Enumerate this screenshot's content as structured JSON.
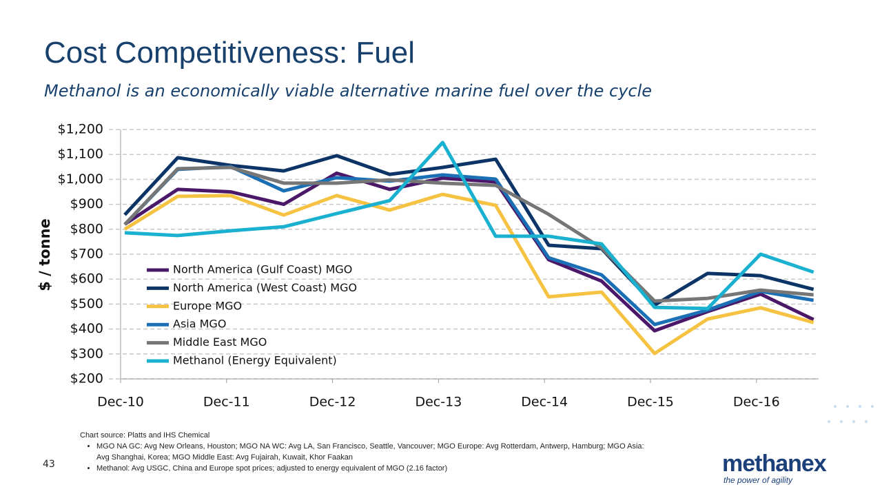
{
  "title": "Cost Competitiveness: Fuel",
  "subtitle": "Methanol is an economically viable alternative marine fuel over the cycle",
  "chart_data": {
    "type": "line",
    "ylabel": "$ / tonne",
    "categories": [
      "Dec-10",
      null,
      "Dec-11",
      null,
      "Dec-12",
      null,
      "Dec-13",
      null,
      "Dec-14",
      null,
      "Dec-15",
      null,
      "Dec-16",
      null
    ],
    "series": [
      {
        "name": "North America (Gulf Coast) MGO",
        "color": "#4b1869",
        "values": [
          820,
          960,
          950,
          900,
          1025,
          960,
          1005,
          990,
          678,
          592,
          393,
          470,
          540,
          438
        ]
      },
      {
        "name": "North America (West Coast) MGO",
        "color": "#0d3466",
        "values": [
          858,
          1087,
          1056,
          1034,
          1095,
          1020,
          1048,
          1081,
          736,
          722,
          496,
          623,
          614,
          559
        ]
      },
      {
        "name": "Europe MGO",
        "color": "#f5c242",
        "values": [
          800,
          932,
          935,
          857,
          935,
          877,
          940,
          896,
          529,
          548,
          302,
          440,
          485,
          426
        ]
      },
      {
        "name": "Asia MGO",
        "color": "#1b6fb5",
        "values": [
          819,
          1040,
          1051,
          954,
          1007,
          993,
          1018,
          1001,
          686,
          617,
          418,
          476,
          551,
          515
        ]
      },
      {
        "name": "Middle East MGO",
        "color": "#767676",
        "values": [
          819,
          1043,
          1048,
          985,
          985,
          998,
          985,
          976,
          860,
          725,
          512,
          523,
          556,
          537
        ]
      },
      {
        "name": "Methanol (Energy Equivalent)",
        "color": "#1ab0cf",
        "values": [
          786,
          775,
          794,
          810,
          863,
          915,
          1148,
          772,
          772,
          741,
          487,
          482,
          700,
          628
        ]
      }
    ],
    "ylim": [
      200,
      1200
    ],
    "yticks": [
      {
        "value": 200,
        "label": "$200"
      },
      {
        "value": 300,
        "label": "$300"
      },
      {
        "value": 400,
        "label": "$400"
      },
      {
        "value": 500,
        "label": "$500"
      },
      {
        "value": 600,
        "label": "$600"
      },
      {
        "value": 700,
        "label": "$700"
      },
      {
        "value": 800,
        "label": "$800"
      },
      {
        "value": 900,
        "label": "$900"
      },
      {
        "value": 1000,
        "label": "$1,000"
      },
      {
        "value": 1100,
        "label": "$1,100"
      },
      {
        "value": 1200,
        "label": "$1,200"
      }
    ],
    "grid": true,
    "legend": "center-left"
  },
  "footer": {
    "source": "Chart source: Platts and IHS Chemical",
    "bullets": [
      "MGO NA GC: Avg New Orleans, Houston; MGO NA WC: Avg LA, San Francisco, Seattle, Vancouver; MGO Europe: Avg Rotterdam, Antwerp, Hamburg; MGO Asia: Avg Shanghai, Korea; MGO Middle East: Avg Fujairah, Kuwait, Khor Faakan",
      "Methanol:  Avg USGC, China and Europe spot prices; adjusted to energy equivalent of MGO (2.16 factor)"
    ],
    "page": "43",
    "logo": "methanex",
    "tagline": "the power of agility"
  }
}
